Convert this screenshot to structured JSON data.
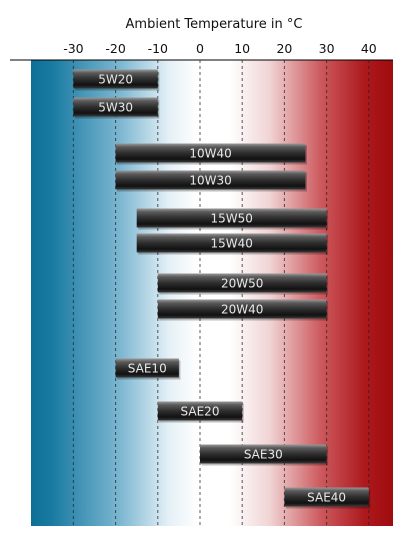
{
  "chart_data": {
    "type": "bar",
    "orientation": "horizontal-range",
    "title": "Ambient Temperature in °C",
    "xlabel": "Ambient Temperature in °C",
    "xlim": [
      -40,
      45
    ],
    "x_ticks": [
      "-30",
      "-20",
      "-10",
      "0",
      "10",
      "20",
      "30",
      "40"
    ],
    "grid": "dashed vertical lines at every 10 °C",
    "background": "gradient from blue (cold) through white to red (hot)",
    "colors": {
      "cold": "#0d6f97",
      "neutral": "#ffffff",
      "hot": "#a30d10",
      "bar": "#2a2a2a"
    },
    "bars": [
      {
        "label": "5W20",
        "min": -30,
        "max": -10
      },
      {
        "label": "5W30",
        "min": -30,
        "max": -10
      },
      {
        "label": "10W40",
        "min": -20,
        "max": 25
      },
      {
        "label": "10W30",
        "min": -20,
        "max": 25
      },
      {
        "label": "15W50",
        "min": -15,
        "max": 30
      },
      {
        "label": "15W40",
        "min": -15,
        "max": 30
      },
      {
        "label": "20W50",
        "min": -10,
        "max": 30
      },
      {
        "label": "20W40",
        "min": -10,
        "max": 30
      },
      {
        "label": "SAE10",
        "min": -20,
        "max": -5
      },
      {
        "label": "SAE20",
        "min": -10,
        "max": 10
      },
      {
        "label": "SAE30",
        "min": 0,
        "max": 30
      },
      {
        "label": "SAE40",
        "min": 20,
        "max": 40
      }
    ]
  }
}
